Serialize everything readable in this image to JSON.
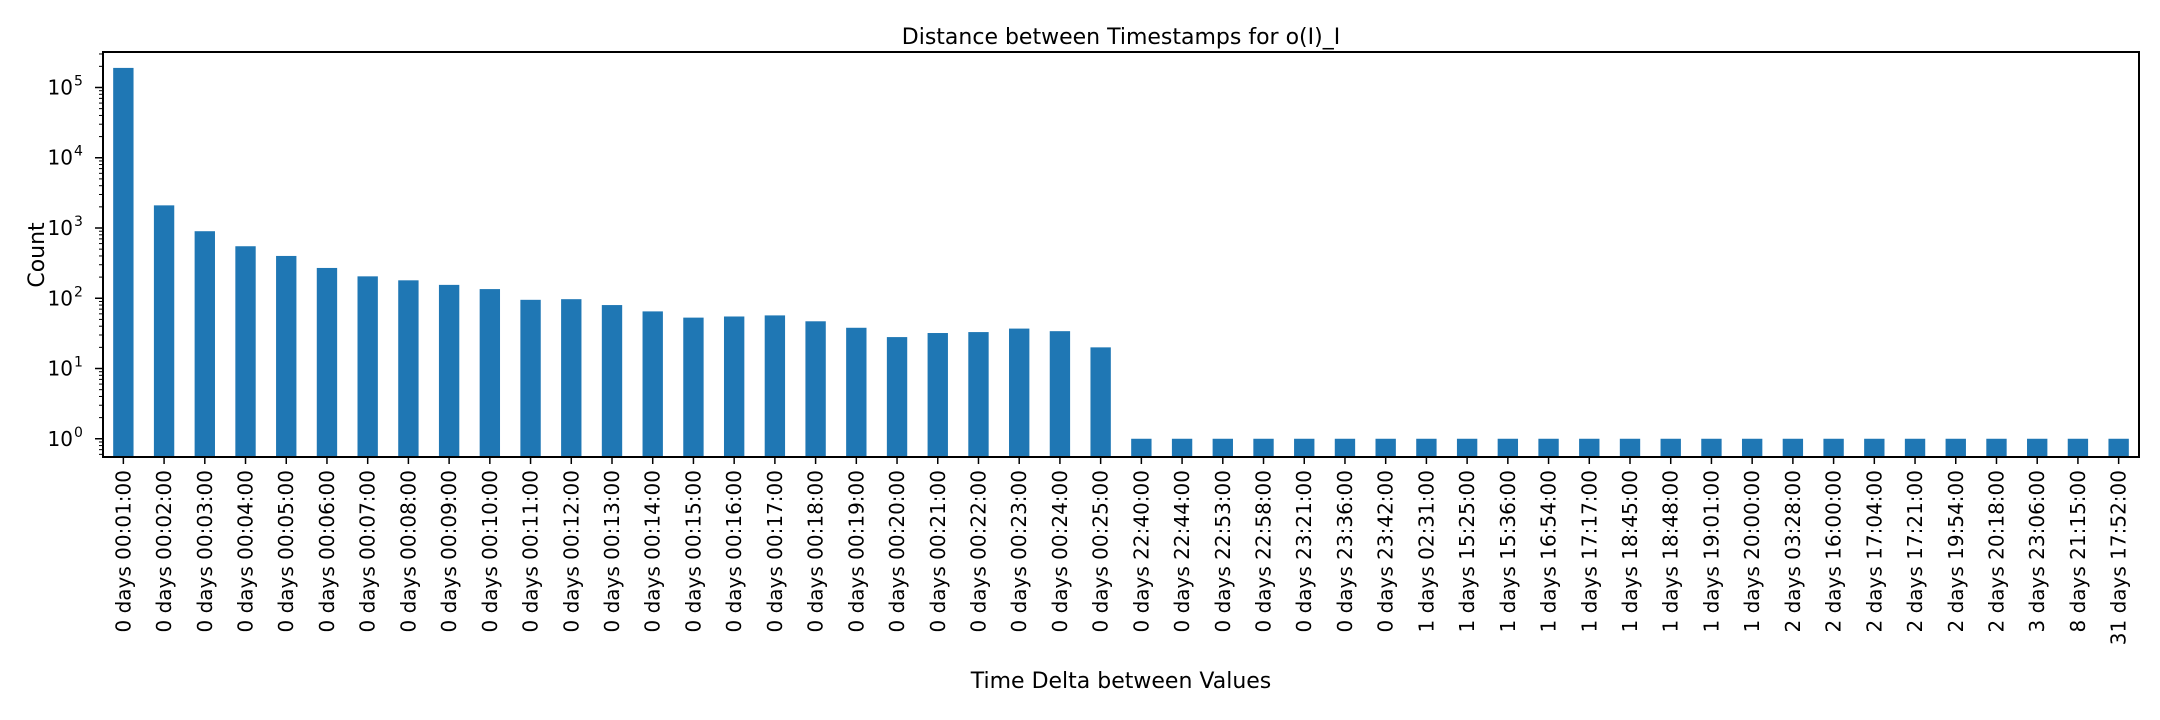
{
  "chart_data": {
    "type": "bar",
    "title": "Distance between Timestamps for o(I)_I",
    "xlabel": "Time Delta between Values",
    "ylabel": "Count",
    "yscale": "log",
    "ylim": [
      0.55,
      320000
    ],
    "yticks": [
      {
        "value": 1,
        "base": "10",
        "exp": "0"
      },
      {
        "value": 10,
        "base": "10",
        "exp": "1"
      },
      {
        "value": 100,
        "base": "10",
        "exp": "2"
      },
      {
        "value": 1000,
        "base": "10",
        "exp": "3"
      },
      {
        "value": 10000,
        "base": "10",
        "exp": "4"
      },
      {
        "value": 100000,
        "base": "10",
        "exp": "5"
      }
    ],
    "bar_color": "#1f77b4",
    "grid": false,
    "legend": "none",
    "categories": [
      "0 days 00:01:00",
      "0 days 00:02:00",
      "0 days 00:03:00",
      "0 days 00:04:00",
      "0 days 00:05:00",
      "0 days 00:06:00",
      "0 days 00:07:00",
      "0 days 00:08:00",
      "0 days 00:09:00",
      "0 days 00:10:00",
      "0 days 00:11:00",
      "0 days 00:12:00",
      "0 days 00:13:00",
      "0 days 00:14:00",
      "0 days 00:15:00",
      "0 days 00:16:00",
      "0 days 00:17:00",
      "0 days 00:18:00",
      "0 days 00:19:00",
      "0 days 00:20:00",
      "0 days 00:21:00",
      "0 days 00:22:00",
      "0 days 00:23:00",
      "0 days 00:24:00",
      "0 days 00:25:00",
      "0 days 22:40:00",
      "0 days 22:44:00",
      "0 days 22:53:00",
      "0 days 22:58:00",
      "0 days 23:21:00",
      "0 days 23:36:00",
      "0 days 23:42:00",
      "1 days 02:31:00",
      "1 days 15:25:00",
      "1 days 15:36:00",
      "1 days 16:54:00",
      "1 days 17:17:00",
      "1 days 18:45:00",
      "1 days 18:48:00",
      "1 days 19:01:00",
      "1 days 20:00:00",
      "2 days 03:28:00",
      "2 days 16:00:00",
      "2 days 17:04:00",
      "2 days 17:21:00",
      "2 days 19:54:00",
      "2 days 20:18:00",
      "3 days 23:06:00",
      "8 days 21:15:00",
      "31 days 17:52:00"
    ],
    "values": [
      190000,
      2100,
      900,
      550,
      400,
      270,
      205,
      180,
      155,
      135,
      95,
      97,
      80,
      65,
      53,
      55,
      57,
      47,
      38,
      28,
      32,
      33,
      37,
      34,
      20,
      1,
      1,
      1,
      1,
      1,
      1,
      1,
      1,
      1,
      1,
      1,
      1,
      1,
      1,
      1,
      1,
      1,
      1,
      1,
      1,
      1,
      1,
      1,
      1,
      1
    ]
  }
}
